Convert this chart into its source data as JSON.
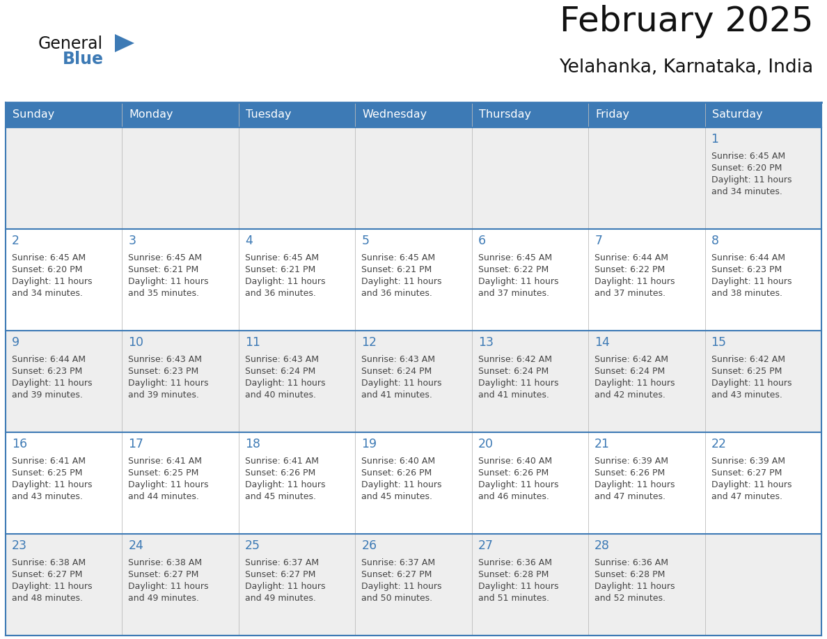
{
  "title": "February 2025",
  "subtitle": "Yelahanka, Karnataka, India",
  "header_color": "#3d7ab5",
  "header_text_color": "#ffffff",
  "cell_bg_even": "#eeeeee",
  "cell_bg_odd": "#ffffff",
  "border_color": "#3d7ab5",
  "row_border_color": "#3d7ab5",
  "day_names": [
    "Sunday",
    "Monday",
    "Tuesday",
    "Wednesday",
    "Thursday",
    "Friday",
    "Saturday"
  ],
  "title_color": "#111111",
  "subtitle_color": "#111111",
  "cell_text_color": "#444444",
  "day_num_color": "#3d7ab5",
  "logo_general_color": "#111111",
  "logo_blue_color": "#3d7ab5",
  "calendar": [
    [
      null,
      null,
      null,
      null,
      null,
      null,
      {
        "day": 1,
        "sunrise": "6:45 AM",
        "sunset": "6:20 PM",
        "daylight_h": "11 hours",
        "daylight_m": "and 34 minutes."
      }
    ],
    [
      {
        "day": 2,
        "sunrise": "6:45 AM",
        "sunset": "6:20 PM",
        "daylight_h": "11 hours",
        "daylight_m": "and 34 minutes."
      },
      {
        "day": 3,
        "sunrise": "6:45 AM",
        "sunset": "6:21 PM",
        "daylight_h": "11 hours",
        "daylight_m": "and 35 minutes."
      },
      {
        "day": 4,
        "sunrise": "6:45 AM",
        "sunset": "6:21 PM",
        "daylight_h": "11 hours",
        "daylight_m": "and 36 minutes."
      },
      {
        "day": 5,
        "sunrise": "6:45 AM",
        "sunset": "6:21 PM",
        "daylight_h": "11 hours",
        "daylight_m": "and 36 minutes."
      },
      {
        "day": 6,
        "sunrise": "6:45 AM",
        "sunset": "6:22 PM",
        "daylight_h": "11 hours",
        "daylight_m": "and 37 minutes."
      },
      {
        "day": 7,
        "sunrise": "6:44 AM",
        "sunset": "6:22 PM",
        "daylight_h": "11 hours",
        "daylight_m": "and 37 minutes."
      },
      {
        "day": 8,
        "sunrise": "6:44 AM",
        "sunset": "6:23 PM",
        "daylight_h": "11 hours",
        "daylight_m": "and 38 minutes."
      }
    ],
    [
      {
        "day": 9,
        "sunrise": "6:44 AM",
        "sunset": "6:23 PM",
        "daylight_h": "11 hours",
        "daylight_m": "and 39 minutes."
      },
      {
        "day": 10,
        "sunrise": "6:43 AM",
        "sunset": "6:23 PM",
        "daylight_h": "11 hours",
        "daylight_m": "and 39 minutes."
      },
      {
        "day": 11,
        "sunrise": "6:43 AM",
        "sunset": "6:24 PM",
        "daylight_h": "11 hours",
        "daylight_m": "and 40 minutes."
      },
      {
        "day": 12,
        "sunrise": "6:43 AM",
        "sunset": "6:24 PM",
        "daylight_h": "11 hours",
        "daylight_m": "and 41 minutes."
      },
      {
        "day": 13,
        "sunrise": "6:42 AM",
        "sunset": "6:24 PM",
        "daylight_h": "11 hours",
        "daylight_m": "and 41 minutes."
      },
      {
        "day": 14,
        "sunrise": "6:42 AM",
        "sunset": "6:24 PM",
        "daylight_h": "11 hours",
        "daylight_m": "and 42 minutes."
      },
      {
        "day": 15,
        "sunrise": "6:42 AM",
        "sunset": "6:25 PM",
        "daylight_h": "11 hours",
        "daylight_m": "and 43 minutes."
      }
    ],
    [
      {
        "day": 16,
        "sunrise": "6:41 AM",
        "sunset": "6:25 PM",
        "daylight_h": "11 hours",
        "daylight_m": "and 43 minutes."
      },
      {
        "day": 17,
        "sunrise": "6:41 AM",
        "sunset": "6:25 PM",
        "daylight_h": "11 hours",
        "daylight_m": "and 44 minutes."
      },
      {
        "day": 18,
        "sunrise": "6:41 AM",
        "sunset": "6:26 PM",
        "daylight_h": "11 hours",
        "daylight_m": "and 45 minutes."
      },
      {
        "day": 19,
        "sunrise": "6:40 AM",
        "sunset": "6:26 PM",
        "daylight_h": "11 hours",
        "daylight_m": "and 45 minutes."
      },
      {
        "day": 20,
        "sunrise": "6:40 AM",
        "sunset": "6:26 PM",
        "daylight_h": "11 hours",
        "daylight_m": "and 46 minutes."
      },
      {
        "day": 21,
        "sunrise": "6:39 AM",
        "sunset": "6:26 PM",
        "daylight_h": "11 hours",
        "daylight_m": "and 47 minutes."
      },
      {
        "day": 22,
        "sunrise": "6:39 AM",
        "sunset": "6:27 PM",
        "daylight_h": "11 hours",
        "daylight_m": "and 47 minutes."
      }
    ],
    [
      {
        "day": 23,
        "sunrise": "6:38 AM",
        "sunset": "6:27 PM",
        "daylight_h": "11 hours",
        "daylight_m": "and 48 minutes."
      },
      {
        "day": 24,
        "sunrise": "6:38 AM",
        "sunset": "6:27 PM",
        "daylight_h": "11 hours",
        "daylight_m": "and 49 minutes."
      },
      {
        "day": 25,
        "sunrise": "6:37 AM",
        "sunset": "6:27 PM",
        "daylight_h": "11 hours",
        "daylight_m": "and 49 minutes."
      },
      {
        "day": 26,
        "sunrise": "6:37 AM",
        "sunset": "6:27 PM",
        "daylight_h": "11 hours",
        "daylight_m": "and 50 minutes."
      },
      {
        "day": 27,
        "sunrise": "6:36 AM",
        "sunset": "6:28 PM",
        "daylight_h": "11 hours",
        "daylight_m": "and 51 minutes."
      },
      {
        "day": 28,
        "sunrise": "6:36 AM",
        "sunset": "6:28 PM",
        "daylight_h": "11 hours",
        "daylight_m": "and 52 minutes."
      },
      null
    ]
  ]
}
